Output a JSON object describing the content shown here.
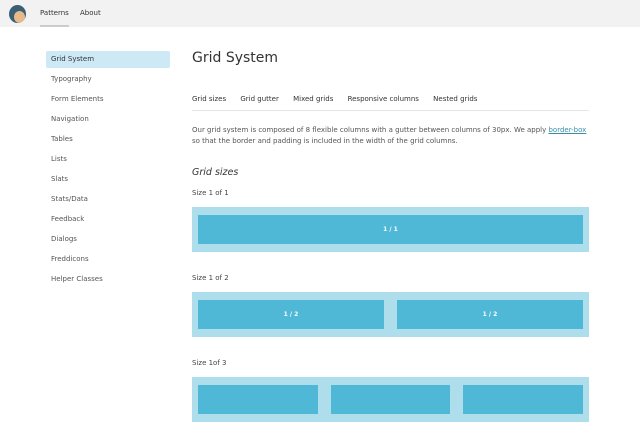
{
  "header": {
    "logo": "freddie-logo",
    "nav": [
      "Patterns",
      "About"
    ]
  },
  "sidebar": {
    "items": [
      "Grid System",
      "Typography",
      "Form Elements",
      "Navigation",
      "Tables",
      "Lists",
      "Slats",
      "Stats/Data",
      "Feedback",
      "Dialogs",
      "Freddicons",
      "Helper Classes"
    ]
  },
  "main": {
    "title": "Grid System",
    "tabs": [
      "Grid sizes",
      "Grid gutter",
      "Mixed grids",
      "Responsive columns",
      "Nested grids"
    ],
    "para_before": "Our grid system is composed of 8 flexible columns with a gutter between columns of 30px. We apply ",
    "para_link": "border-box",
    "para_after": " so that the border and padding is included in the width of the grid columns.",
    "section": "Grid sizes",
    "sizes": [
      {
        "label": "Size 1 of 1",
        "cols": [
          "1 / 1"
        ]
      },
      {
        "label": "Size 1 of 2",
        "cols": [
          "1 / 2",
          "1 / 2"
        ]
      },
      {
        "label": "Size 1of 3",
        "cols": [
          "",
          "",
          ""
        ]
      }
    ]
  },
  "colors": {
    "outer": "#aedeec",
    "column": "#4fb8d6",
    "active": "#cde9f5"
  }
}
